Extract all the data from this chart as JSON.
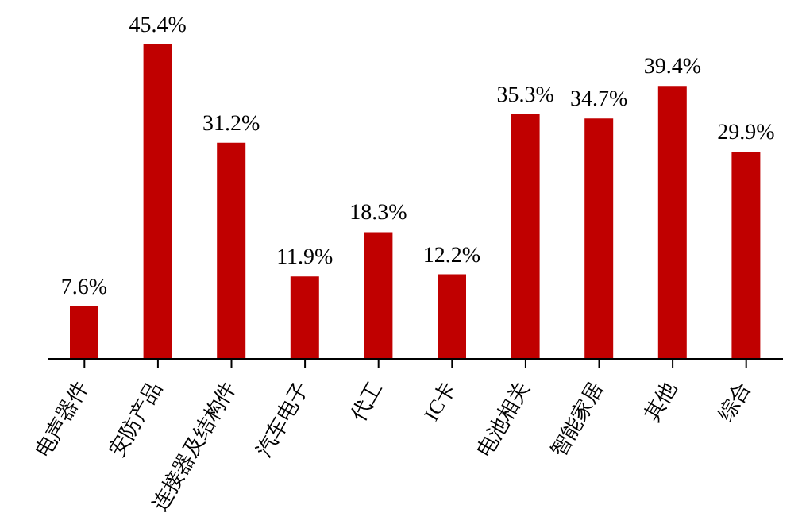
{
  "chart_data": {
    "type": "bar",
    "categories": [
      "电声器件",
      "安防产品",
      "连接器及结构件",
      "汽车电子",
      "代工",
      "IC卡",
      "电池相关",
      "智能家居",
      "其他",
      "综合"
    ],
    "values": [
      7.6,
      45.4,
      31.2,
      11.9,
      18.3,
      12.2,
      35.3,
      34.7,
      39.4,
      29.9
    ],
    "value_labels": [
      "7.6%",
      "45.4%",
      "31.2%",
      "11.9%",
      "18.3%",
      "12.2%",
      "35.3%",
      "34.7%",
      "39.4%",
      "29.9%"
    ],
    "color": "#c00000"
  }
}
